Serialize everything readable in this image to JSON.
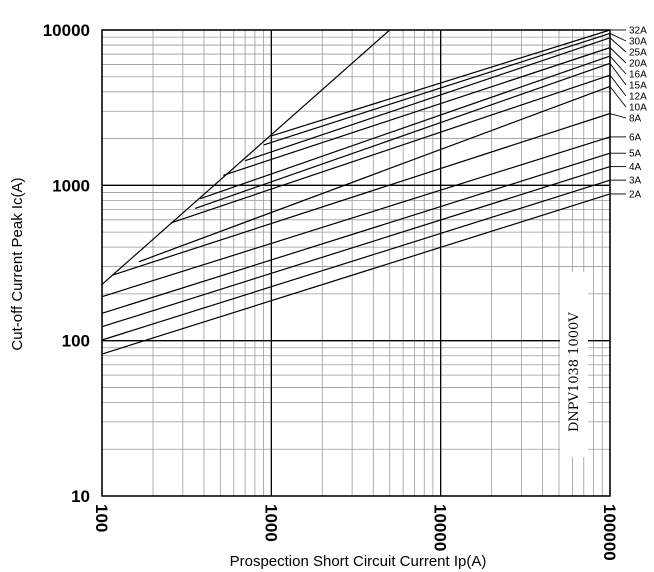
{
  "chart_data": {
    "type": "line",
    "title": "",
    "xlabel": "Prospection Short Circuit Current Ip(A)",
    "ylabel": "Cut-off Current Peak Ic(A)",
    "x_scale": "log",
    "y_scale": "log",
    "xlim": [
      100,
      100000
    ],
    "ylim": [
      10,
      10000
    ],
    "x_ticks": [
      "100",
      "1000",
      "10000",
      "100000"
    ],
    "y_ticks": [
      "10",
      "100",
      "1000",
      "10000"
    ],
    "grid": true,
    "legend": "right-side labels",
    "annotation": "DNPV1038 1000V",
    "reference_line": {
      "points": [
        [
          100,
          230
        ],
        [
          5000,
          10000
        ]
      ]
    },
    "series": [
      {
        "name": "2A",
        "points": [
          [
            100,
            82
          ],
          [
            100000,
            880
          ]
        ]
      },
      {
        "name": "3A",
        "points": [
          [
            100,
            101
          ],
          [
            100000,
            1080
          ]
        ]
      },
      {
        "name": "4A",
        "points": [
          [
            100,
            123
          ],
          [
            100000,
            1320
          ]
        ]
      },
      {
        "name": "5A",
        "points": [
          [
            100,
            150
          ],
          [
            100000,
            1610
          ]
        ]
      },
      {
        "name": "6A",
        "points": [
          [
            100,
            192
          ],
          [
            100000,
            2050
          ]
        ]
      },
      {
        "name": "8A",
        "points": [
          [
            115,
            264
          ],
          [
            100000,
            2900
          ]
        ]
      },
      {
        "name": "10A",
        "points": [
          [
            165,
            322
          ],
          [
            100000,
            4330
          ]
        ]
      },
      {
        "name": "12A",
        "points": [
          [
            255,
            573
          ],
          [
            100000,
            5120
          ]
        ]
      },
      {
        "name": "15A",
        "points": [
          [
            355,
            710
          ],
          [
            100000,
            6100
          ]
        ]
      },
      {
        "name": "16A",
        "points": [
          [
            380,
            820
          ],
          [
            100000,
            6800
          ]
        ]
      },
      {
        "name": "20A",
        "points": [
          [
            520,
            1160
          ],
          [
            100000,
            7700
          ]
        ]
      },
      {
        "name": "25A",
        "points": [
          [
            700,
            1440
          ],
          [
            100000,
            8900
          ]
        ]
      },
      {
        "name": "30A",
        "points": [
          [
            900,
            1820
          ],
          [
            100000,
            9500
          ]
        ]
      },
      {
        "name": "32A",
        "points": [
          [
            1000,
            2080
          ],
          [
            100000,
            10000
          ]
        ]
      }
    ]
  }
}
